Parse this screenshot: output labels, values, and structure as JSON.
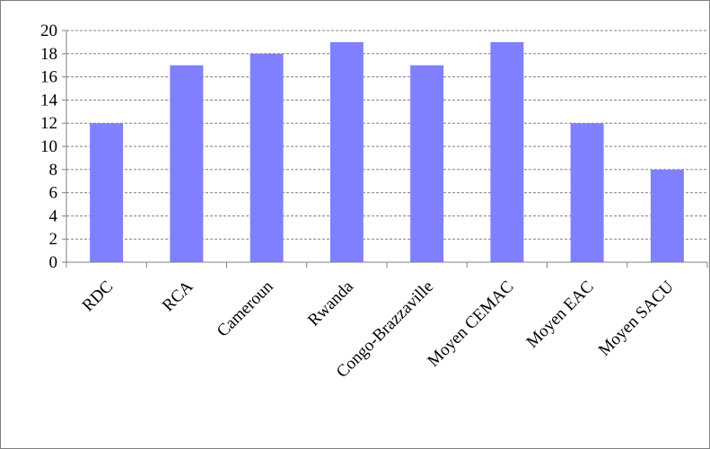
{
  "chart_data": {
    "type": "bar",
    "title": "",
    "xlabel": "",
    "ylabel": "",
    "categories": [
      "RDC",
      "RCA",
      "Cameroun",
      "Rwanda",
      "Congo-Brazzaville",
      "Moyen CEMAC",
      "Moyen EAC",
      "Moyen SACU"
    ],
    "values": [
      12,
      17,
      18,
      19,
      17,
      19,
      12,
      8
    ],
    "ylim": [
      0,
      20
    ],
    "yticks": [
      "0",
      "2",
      "4",
      "6",
      "8",
      "10",
      "12",
      "14",
      "16",
      "18",
      "20"
    ],
    "grid": true,
    "grid_style": "dashed",
    "legend": "none",
    "bar_color": "#8080ff"
  }
}
